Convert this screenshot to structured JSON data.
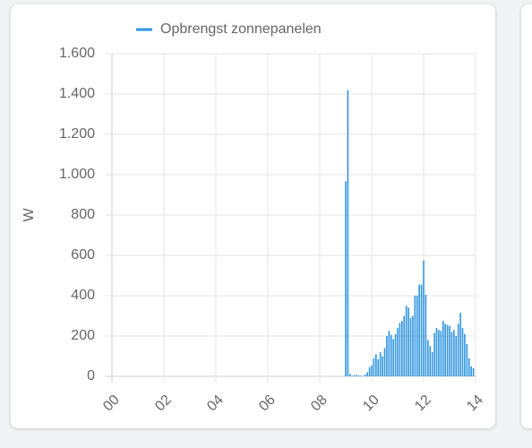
{
  "chart_data": {
    "type": "bar",
    "y_label": "W",
    "series": [
      {
        "name": "Opbrengst zonnepanelen",
        "color": "#2f95e0",
        "x": [
          9,
          9.083,
          9.167,
          9.25,
          9.333,
          9.417,
          9.5,
          9.583,
          9.667,
          9.75,
          9.833,
          9.917,
          10,
          10.083,
          10.167,
          10.25,
          10.333,
          10.417,
          10.5,
          10.583,
          10.667,
          10.75,
          10.833,
          10.917,
          11,
          11.083,
          11.167,
          11.25,
          11.333,
          11.417,
          11.5,
          11.583,
          11.667,
          11.75,
          11.833,
          11.917,
          12,
          12.083,
          12.167,
          12.25,
          12.333,
          12.417,
          12.5,
          12.583,
          12.667,
          12.75,
          12.833,
          12.917,
          13,
          13.083,
          13.167,
          13.25,
          13.333,
          13.417,
          13.5,
          13.583,
          13.667,
          13.75,
          13.833,
          13.917
        ],
        "values": [
          967,
          1420,
          12,
          3,
          6,
          5,
          4,
          3,
          2,
          8,
          20,
          45,
          55,
          90,
          110,
          85,
          120,
          100,
          140,
          200,
          225,
          205,
          185,
          210,
          240,
          265,
          275,
          300,
          350,
          340,
          290,
          300,
          400,
          400,
          455,
          455,
          575,
          405,
          180,
          150,
          120,
          215,
          240,
          230,
          225,
          275,
          260,
          255,
          250,
          220,
          230,
          200,
          260,
          315,
          240,
          210,
          160,
          90,
          50,
          40
        ]
      }
    ],
    "xlim": [
      0,
      14
    ],
    "xticks": [
      {
        "value": 0,
        "label": "00"
      },
      {
        "value": 2,
        "label": "02"
      },
      {
        "value": 4,
        "label": "04"
      },
      {
        "value": 6,
        "label": "06"
      },
      {
        "value": 8,
        "label": "08"
      },
      {
        "value": 10,
        "label": "10"
      },
      {
        "value": 12,
        "label": "12"
      },
      {
        "value": 14,
        "label": "14"
      }
    ],
    "ylim": [
      0,
      1600
    ],
    "yticks": [
      0,
      200,
      400,
      600,
      800,
      {
        "value": 1000,
        "label": "1.000"
      },
      {
        "value": 1200,
        "label": "1.200"
      },
      {
        "value": 1400,
        "label": "1.400"
      },
      {
        "value": 1600,
        "label": "1.600"
      }
    ],
    "grid": true,
    "legend": "top"
  }
}
